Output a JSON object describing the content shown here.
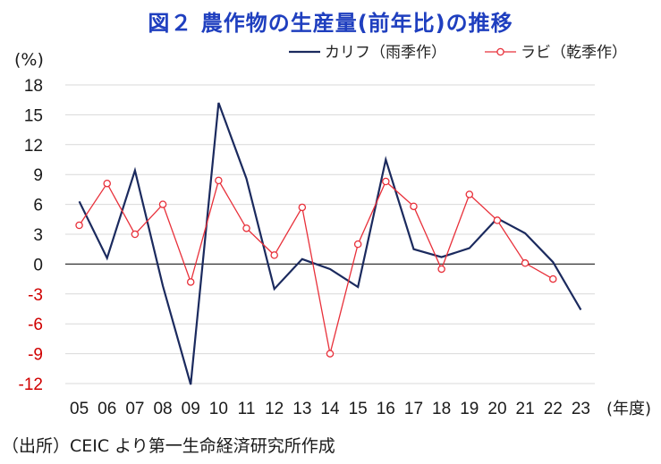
{
  "title": "図２ 農作物の生産量(前年比)の推移",
  "ylabel": "(%)",
  "xunit": "(年度)",
  "source": "（出所）CEIC より第一生命経済研究所作成",
  "colors": {
    "kharif": "#1b2a5e",
    "rabi": "#e8303a",
    "grid": "#d9d9d9",
    "zero_line": "#333333",
    "title": "#1f3fbf",
    "negative_tick": "#d00000"
  },
  "chart_data": {
    "type": "line",
    "title": "図２ 農作物の生産量(前年比)の推移",
    "xlabel": "(年度)",
    "ylabel": "(%)",
    "categories": [
      "05",
      "06",
      "07",
      "08",
      "09",
      "10",
      "11",
      "12",
      "13",
      "14",
      "15",
      "16",
      "17",
      "18",
      "19",
      "20",
      "21",
      "22",
      "23"
    ],
    "yticks": [
      18,
      15,
      12,
      9,
      6,
      3,
      0,
      -3,
      -6,
      -9,
      -12
    ],
    "ylim": [
      -12,
      18
    ],
    "grid": true,
    "legend_position": "top-right",
    "series": [
      {
        "name": "カリフ（雨季作）",
        "color": "#1b2a5e",
        "marker": "none",
        "values": [
          6.3,
          0.6,
          9.4,
          -2.2,
          -12.1,
          16.2,
          8.6,
          -2.5,
          0.5,
          -0.5,
          -2.3,
          10.5,
          1.5,
          0.7,
          1.6,
          4.6,
          3.1,
          0.2,
          -4.6
        ]
      },
      {
        "name": "ラビ（乾季作）",
        "color": "#e8303a",
        "marker": "circle",
        "values": [
          3.9,
          8.1,
          3.0,
          6.0,
          -1.8,
          8.4,
          3.6,
          0.9,
          5.7,
          -9.0,
          2.0,
          8.3,
          5.8,
          -0.5,
          7.0,
          4.4,
          0.1,
          -1.5,
          null
        ]
      }
    ]
  }
}
